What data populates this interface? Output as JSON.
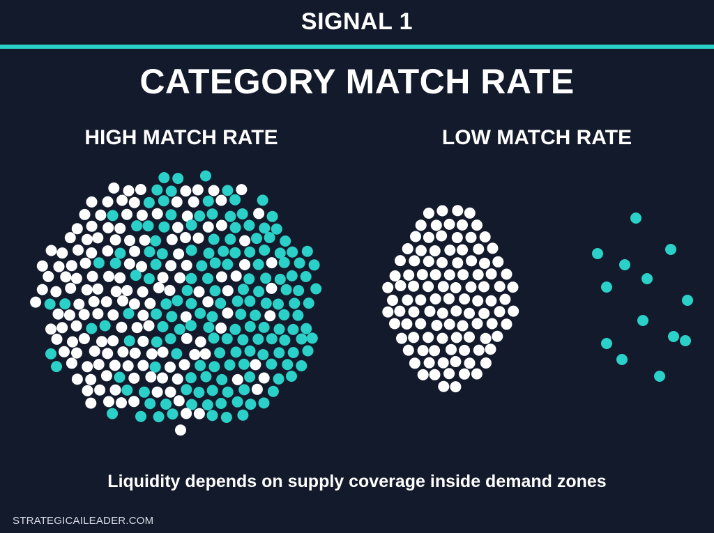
{
  "header": {
    "signal_label": "SIGNAL 1",
    "title": "CATEGORY MATCH RATE"
  },
  "panels": {
    "high_label": "HIGH MATCH RATE",
    "low_label": "LOW MATCH RATE"
  },
  "caption": "Liquidity depends on supply coverage inside demand zones",
  "footer": "STRATEGICAILEADER.COM",
  "colors": {
    "background": "#131a2b",
    "accent": "#2bd1c8",
    "white_dot": "#ffffff"
  }
}
